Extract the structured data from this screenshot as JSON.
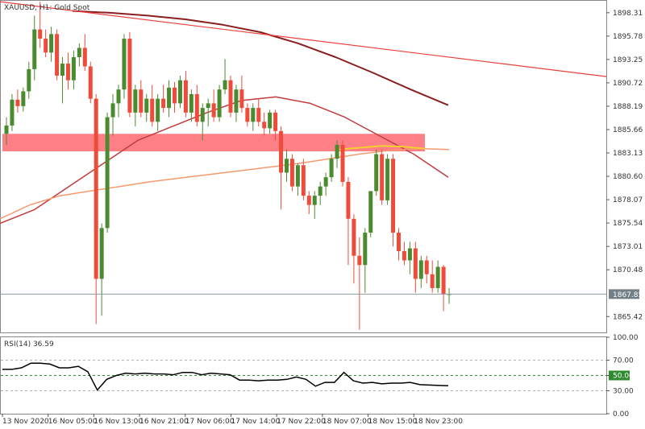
{
  "colors": {
    "up": "#4c8a2f",
    "down": "#ef4b3b",
    "ma_fast": "#8b1f1f",
    "ma_mid": "#c23b3b",
    "ma_slow": "#f59a6e",
    "ma_yellow": "#f2cf33",
    "trendline": "#e8413d",
    "zone": "#ff7f86",
    "rsi": "#000000",
    "price_line": "#8a9aa2",
    "price_badge": "#737f86"
  },
  "chart_data": [
    {
      "type": "candlestick",
      "title": "XAUUSD, H1:  Gold Spot",
      "ylim": [
        1863.7,
        1899.6
      ],
      "y_ticks": [
        "1898.31",
        "1895.78",
        "1893.25",
        "1890.72",
        "1888.19",
        "1885.66",
        "1883.13",
        "1880.60",
        "1878.07",
        "1875.54",
        "1873.01",
        "1870.48",
        "1865.42"
      ],
      "current_price": "1867.85",
      "x_labels": [
        "13 Nov 2020",
        "16 Nov 05:00",
        "16 Nov 13:00",
        "16 Nov 21:00",
        "17 Nov 06:00",
        "17 Nov 14:00",
        "17 Nov 22:00",
        "18 Nov 07:00",
        "18 Nov 15:00",
        "18 Nov 23:00"
      ],
      "candles_ohlc": [
        [
          1885.2,
          1887.0,
          1884.0,
          1886.1
        ],
        [
          1886.1,
          1889.5,
          1885.5,
          1888.9
        ],
        [
          1888.9,
          1890.0,
          1887.5,
          1888.2
        ],
        [
          1888.2,
          1890.2,
          1887.6,
          1889.8
        ],
        [
          1889.8,
          1893.0,
          1889.0,
          1892.2
        ],
        [
          1892.2,
          1898.0,
          1891.0,
          1896.5
        ],
        [
          1896.5,
          1899.5,
          1894.5,
          1895.5
        ],
        [
          1895.5,
          1896.5,
          1893.5,
          1894.0
        ],
        [
          1894.0,
          1896.8,
          1893.0,
          1896.0
        ],
        [
          1896.0,
          1896.5,
          1891.0,
          1891.5
        ],
        [
          1891.5,
          1893.5,
          1888.5,
          1892.8
        ],
        [
          1892.8,
          1894.0,
          1890.0,
          1891.0
        ],
        [
          1891.0,
          1894.2,
          1890.0,
          1893.5
        ],
        [
          1893.5,
          1895.0,
          1892.5,
          1894.5
        ],
        [
          1894.5,
          1896.0,
          1892.0,
          1892.5
        ],
        [
          1892.5,
          1893.0,
          1888.5,
          1889.0
        ],
        [
          1889.0,
          1889.5,
          1864.6,
          1869.5
        ],
        [
          1869.5,
          1875.5,
          1865.5,
          1875.0
        ],
        [
          1875.0,
          1887.5,
          1874.5,
          1887.0
        ],
        [
          1887.0,
          1889.5,
          1885.0,
          1888.5
        ],
        [
          1888.5,
          1890.5,
          1887.0,
          1890.0
        ],
        [
          1890.0,
          1896.0,
          1889.0,
          1895.5
        ],
        [
          1895.5,
          1896.2,
          1887.0,
          1887.5
        ],
        [
          1887.5,
          1890.5,
          1886.0,
          1890.0
        ],
        [
          1890.0,
          1891.0,
          1887.0,
          1887.5
        ],
        [
          1887.5,
          1889.5,
          1886.5,
          1889.0
        ],
        [
          1889.0,
          1890.5,
          1886.0,
          1886.5
        ],
        [
          1886.5,
          1889.5,
          1885.5,
          1889.0
        ],
        [
          1889.0,
          1890.5,
          1887.5,
          1888.0
        ],
        [
          1888.0,
          1891.0,
          1887.0,
          1890.2
        ],
        [
          1890.2,
          1890.8,
          1887.5,
          1888.5
        ],
        [
          1888.5,
          1891.5,
          1888.0,
          1891.0
        ],
        [
          1891.0,
          1892.0,
          1887.0,
          1887.5
        ],
        [
          1887.5,
          1890.0,
          1886.5,
          1889.5
        ],
        [
          1889.5,
          1890.5,
          1886.0,
          1886.5
        ],
        [
          1886.5,
          1888.5,
          1884.5,
          1888.0
        ],
        [
          1888.0,
          1889.0,
          1886.0,
          1888.5
        ],
        [
          1888.5,
          1890.0,
          1886.5,
          1887.0
        ],
        [
          1887.0,
          1890.5,
          1886.5,
          1890.0
        ],
        [
          1890.0,
          1893.3,
          1889.5,
          1891.0
        ],
        [
          1891.0,
          1891.5,
          1887.0,
          1887.5
        ],
        [
          1887.5,
          1890.5,
          1886.5,
          1890.0
        ],
        [
          1890.0,
          1891.5,
          1887.5,
          1888.0
        ],
        [
          1888.0,
          1888.5,
          1886.0,
          1886.5
        ],
        [
          1886.5,
          1888.5,
          1885.5,
          1888.0
        ],
        [
          1888.0,
          1889.0,
          1886.0,
          1886.5
        ],
        [
          1886.5,
          1887.5,
          1885.0,
          1885.8
        ],
        [
          1885.8,
          1887.8,
          1885.2,
          1887.5
        ],
        [
          1887.5,
          1887.8,
          1884.5,
          1885.5
        ],
        [
          1885.5,
          1886.0,
          1877.0,
          1881.0
        ],
        [
          1881.0,
          1883.5,
          1880.0,
          1882.5
        ],
        [
          1882.5,
          1883.0,
          1879.0,
          1879.5
        ],
        [
          1879.5,
          1882.0,
          1878.5,
          1881.8
        ],
        [
          1881.8,
          1882.5,
          1878.0,
          1878.5
        ],
        [
          1878.5,
          1879.0,
          1876.5,
          1877.5
        ],
        [
          1877.5,
          1879.0,
          1876.0,
          1878.5
        ],
        [
          1878.5,
          1880.0,
          1877.5,
          1879.5
        ],
        [
          1879.5,
          1881.0,
          1878.5,
          1880.5
        ],
        [
          1880.5,
          1883.0,
          1880.0,
          1882.5
        ],
        [
          1882.5,
          1884.5,
          1881.5,
          1884.0
        ],
        [
          1884.0,
          1884.5,
          1879.5,
          1880.0
        ],
        [
          1880.0,
          1880.5,
          1871.0,
          1876.0
        ],
        [
          1876.0,
          1876.5,
          1869.0,
          1872.0
        ],
        [
          1872.0,
          1874.0,
          1864.0,
          1871.0
        ],
        [
          1871.0,
          1875.0,
          1868.0,
          1874.5
        ],
        [
          1874.5,
          1879.0,
          1874.0,
          1879.0
        ],
        [
          1879.0,
          1883.5,
          1878.5,
          1883.0
        ],
        [
          1883.0,
          1883.5,
          1877.5,
          1878.0
        ],
        [
          1878.0,
          1883.0,
          1877.5,
          1882.5
        ],
        [
          1882.5,
          1883.0,
          1873.0,
          1874.5
        ],
        [
          1874.5,
          1875.0,
          1871.5,
          1872.5
        ],
        [
          1872.5,
          1873.5,
          1871.0,
          1871.5
        ],
        [
          1871.5,
          1873.5,
          1870.0,
          1872.8
        ],
        [
          1872.8,
          1873.5,
          1868.0,
          1869.5
        ],
        [
          1869.5,
          1872.0,
          1868.5,
          1871.5
        ],
        [
          1871.5,
          1872.0,
          1869.0,
          1870.0
        ],
        [
          1870.0,
          1871.5,
          1868.0,
          1868.5
        ],
        [
          1868.5,
          1871.5,
          1868.0,
          1870.8
        ],
        [
          1870.8,
          1871.0,
          1866.0,
          1867.8
        ],
        [
          1867.8,
          1868.5,
          1866.8,
          1867.85
        ]
      ],
      "moving_averages": [
        {
          "name": "ma_fast",
          "values": [
            1898.5,
            1898.3,
            1898.0,
            1897.6,
            1897.0,
            1896.2,
            1895.0,
            1893.5,
            1891.8,
            1890.0,
            1888.3
          ]
        },
        {
          "name": "ma_mid",
          "values": [
            1875.5,
            1877.0,
            1879.5,
            1882.0,
            1884.5,
            1886.0,
            1887.5,
            1888.8,
            1889.2,
            1888.5,
            1887.0,
            1885.0,
            1883.0,
            1880.5
          ]
        },
        {
          "name": "ma_slow",
          "values": [
            1876.0,
            1877.5,
            1878.5,
            1879.0,
            1879.5,
            1880.0,
            1880.4,
            1880.8,
            1881.2,
            1881.6,
            1882.0,
            1882.5,
            1883.0,
            1883.4,
            1883.6,
            1883.5
          ]
        },
        {
          "name": "ma_yellow",
          "values": [
            1883.5,
            1883.7,
            1883.9,
            1883.8,
            1883.6
          ]
        }
      ],
      "trendline": [
        1899.5,
        1891.4
      ],
      "zone": [
        1883.3,
        1885.2
      ]
    },
    {
      "type": "line",
      "title": "RSI(14) 36.59",
      "ylim": [
        0,
        100
      ],
      "y_ticks": [
        "100.00",
        "70.00",
        "50.00",
        "30.00",
        "0.00"
      ],
      "levels": [
        70,
        50,
        30
      ],
      "values": [
        58,
        58,
        60,
        66,
        66,
        65,
        60,
        60,
        62,
        55,
        31,
        45,
        50,
        53,
        52,
        53,
        52,
        52,
        51,
        54,
        54,
        51,
        53,
        52,
        51,
        44,
        44,
        43,
        44,
        44,
        45,
        48,
        45,
        36,
        41,
        41,
        54,
        43,
        40,
        41,
        39,
        40,
        40,
        41,
        38,
        37.5,
        37,
        36.6
      ]
    }
  ]
}
